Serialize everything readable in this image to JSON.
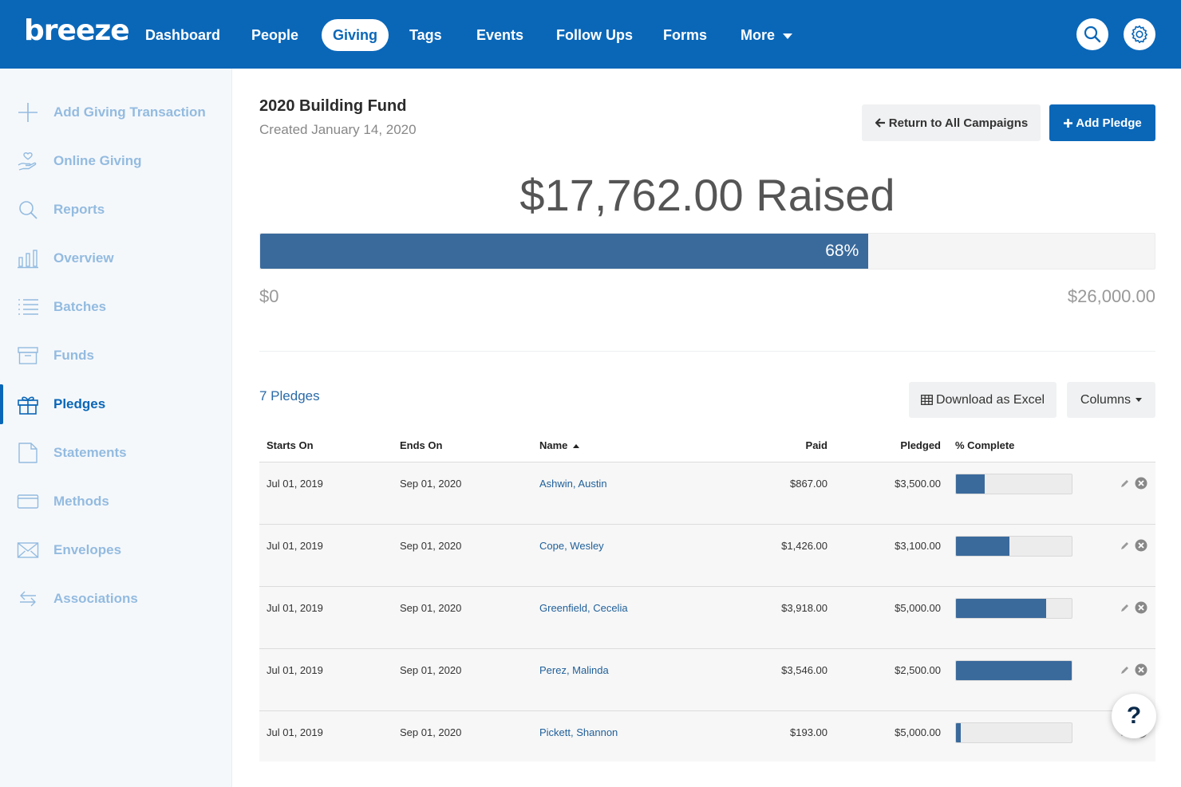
{
  "app": {
    "logo": "breeze",
    "colors": {
      "brand": "#0a67b8",
      "progress": "#3a6a9c",
      "sidebar_text": "#93bbe0"
    }
  },
  "nav": {
    "items": [
      {
        "label": "Dashboard"
      },
      {
        "label": "People"
      },
      {
        "label": "Giving",
        "active": true
      },
      {
        "label": "Tags"
      },
      {
        "label": "Events"
      },
      {
        "label": "Follow Ups"
      },
      {
        "label": "Forms"
      },
      {
        "label": "More"
      }
    ],
    "search_icon": "search-icon",
    "settings_icon": "gear-icon"
  },
  "sidebar": {
    "items": [
      {
        "label": "Add Giving Transaction",
        "icon": "plus-icon"
      },
      {
        "label": "Online Giving",
        "icon": "hand-heart-icon"
      },
      {
        "label": "Reports",
        "icon": "search-icon"
      },
      {
        "label": "Overview",
        "icon": "bar-chart-icon"
      },
      {
        "label": "Batches",
        "icon": "list-icon"
      },
      {
        "label": "Funds",
        "icon": "archive-box-icon"
      },
      {
        "label": "Pledges",
        "icon": "gift-icon",
        "active": true
      },
      {
        "label": "Statements",
        "icon": "document-icon"
      },
      {
        "label": "Methods",
        "icon": "credit-card-icon"
      },
      {
        "label": "Envelopes",
        "icon": "envelope-icon"
      },
      {
        "label": "Associations",
        "icon": "arrows-swap-icon"
      }
    ]
  },
  "campaign": {
    "title": "2020 Building Fund",
    "created": "Created January 14, 2020",
    "return_label": "Return to All Campaigns",
    "add_pledge_label": "Add Pledge",
    "raised_text": "$17,762.00 Raised",
    "progress_percent": 68,
    "progress_label": "68%",
    "goal_min": "$0",
    "goal_max": "$26,000.00"
  },
  "pledges": {
    "count_label": "7 Pledges",
    "download_label": "Download as Excel",
    "columns_label": "Columns",
    "headers": {
      "starts_on": "Starts On",
      "ends_on": "Ends On",
      "name": "Name",
      "paid": "Paid",
      "pledged": "Pledged",
      "complete": "% Complete"
    },
    "rows": [
      {
        "starts": "Jul 01, 2019",
        "ends": "Sep 01, 2020",
        "name": "Ashwin, Austin",
        "paid": "$867.00",
        "pledged": "$3,500.00",
        "complete": 0.25
      },
      {
        "starts": "Jul 01, 2019",
        "ends": "Sep 01, 2020",
        "name": "Cope, Wesley",
        "paid": "$1,426.00",
        "pledged": "$3,100.00",
        "complete": 0.46
      },
      {
        "starts": "Jul 01, 2019",
        "ends": "Sep 01, 2020",
        "name": "Greenfield, Cecelia",
        "paid": "$3,918.00",
        "pledged": "$5,000.00",
        "complete": 0.78
      },
      {
        "starts": "Jul 01, 2019",
        "ends": "Sep 01, 2020",
        "name": "Perez, Malinda",
        "paid": "$3,546.00",
        "pledged": "$2,500.00",
        "complete": 1.0
      },
      {
        "starts": "Jul 01, 2019",
        "ends": "Sep 01, 2020",
        "name": "Pickett, Shannon",
        "paid": "$193.00",
        "pledged": "$5,000.00",
        "complete": 0.04
      }
    ]
  },
  "help": {
    "label": "?"
  }
}
